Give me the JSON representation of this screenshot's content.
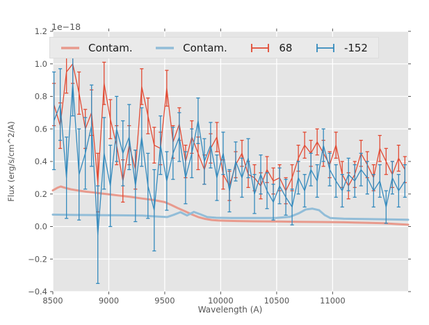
{
  "figure": {
    "offset_label": "1e−18",
    "xlabel": "Wavelength (A)",
    "ylabel": "Flux (erg/s/cm^2/A)"
  },
  "legend": {
    "entries": [
      {
        "label": "Contam.",
        "type": "line",
        "color": "#E89A8D"
      },
      {
        "label": "Contam.",
        "type": "line",
        "color": "#92BDD8"
      },
      {
        "label": "68",
        "type": "errorbar",
        "color": "#E24A33"
      },
      {
        "label": "-152",
        "type": "errorbar",
        "color": "#348ABD"
      }
    ]
  },
  "chart_data": {
    "type": "line",
    "title": "",
    "xlabel": "Wavelength (A)",
    "ylabel": "Flux (erg/s/cm^2/A)",
    "y_offset_factor": "1e-18",
    "xlim": [
      8500,
      11675
    ],
    "ylim": [
      -0.4,
      1.2
    ],
    "x_ticks": [
      8500,
      9000,
      9500,
      10000,
      10500,
      11000
    ],
    "y_ticks": [
      -0.4,
      -0.2,
      0.0,
      0.2,
      0.4,
      0.6,
      0.8,
      1.0,
      1.2
    ],
    "grid": true,
    "background": "#E5E5E5",
    "grid_color": "#FFFFFF",
    "tick_color": "#555555",
    "legend_position": "upper center",
    "series": [
      {
        "name": "Contam. (red)",
        "type": "line",
        "color": "#E89A8D",
        "linewidth": 3,
        "x": [
          8500,
          8540,
          8570,
          8610,
          8660,
          8720,
          8800,
          8900,
          9000,
          9100,
          9200,
          9300,
          9400,
          9500,
          9560,
          9620,
          9680,
          9740,
          9800,
          9860,
          9920,
          9980,
          10050,
          10150,
          10300,
          10500,
          10700,
          10900,
          11100,
          11300,
          11450,
          11550,
          11675
        ],
        "y": [
          0.222,
          0.238,
          0.246,
          0.238,
          0.229,
          0.222,
          0.214,
          0.206,
          0.198,
          0.19,
          0.182,
          0.172,
          0.163,
          0.15,
          0.132,
          0.112,
          0.094,
          0.075,
          0.058,
          0.047,
          0.04,
          0.037,
          0.035,
          0.034,
          0.032,
          0.031,
          0.029,
          0.028,
          0.026,
          0.023,
          0.02,
          0.016,
          0.011
        ]
      },
      {
        "name": "Contam. (blue)",
        "type": "line",
        "color": "#92BDD8",
        "linewidth": 3,
        "x": [
          8500,
          8700,
          8900,
          9100,
          9300,
          9420,
          9520,
          9580,
          9640,
          9700,
          9760,
          9820,
          9880,
          9960,
          10100,
          10300,
          10500,
          10620,
          10700,
          10760,
          10820,
          10880,
          10930,
          10980,
          11100,
          11300,
          11500,
          11675
        ],
        "y": [
          0.073,
          0.071,
          0.07,
          0.069,
          0.067,
          0.062,
          0.058,
          0.072,
          0.088,
          0.068,
          0.09,
          0.075,
          0.058,
          0.054,
          0.052,
          0.052,
          0.053,
          0.06,
          0.082,
          0.105,
          0.11,
          0.1,
          0.07,
          0.052,
          0.048,
          0.046,
          0.044,
          0.042
        ]
      },
      {
        "name": "68",
        "type": "errorbar",
        "color": "#E24A33",
        "linewidth": 1.3,
        "x": [
          8510,
          8566,
          8622,
          8678,
          8734,
          8790,
          8846,
          8902,
          8958,
          9014,
          9070,
          9126,
          9182,
          9238,
          9294,
          9350,
          9406,
          9462,
          9518,
          9574,
          9630,
          9686,
          9742,
          9798,
          9854,
          9910,
          9966,
          10022,
          10078,
          10134,
          10190,
          10246,
          10302,
          10358,
          10414,
          10470,
          10526,
          10582,
          10638,
          10694,
          10750,
          10806,
          10862,
          10918,
          10974,
          11030,
          11086,
          11142,
          11198,
          11254,
          11310,
          11366,
          11422,
          11478,
          11534,
          11590,
          11646
        ],
        "y": [
          0.75,
          0.62,
          0.95,
          1.0,
          0.82,
          0.6,
          0.7,
          0.27,
          0.88,
          0.66,
          0.5,
          0.28,
          0.5,
          0.35,
          0.86,
          0.68,
          0.5,
          0.48,
          0.85,
          0.52,
          0.63,
          0.4,
          0.55,
          0.45,
          0.35,
          0.48,
          0.55,
          0.32,
          0.25,
          0.38,
          0.45,
          0.32,
          0.3,
          0.25,
          0.35,
          0.28,
          0.3,
          0.22,
          0.3,
          0.42,
          0.5,
          0.45,
          0.52,
          0.45,
          0.38,
          0.5,
          0.32,
          0.25,
          0.32,
          0.45,
          0.38,
          0.3,
          0.48,
          0.4,
          0.32,
          0.42,
          0.35
        ],
        "yerr": [
          0.13,
          0.14,
          0.13,
          0.12,
          0.13,
          0.12,
          0.14,
          0.18,
          0.13,
          0.12,
          0.12,
          0.13,
          0.12,
          0.12,
          0.11,
          0.11,
          0.11,
          0.1,
          0.11,
          0.1,
          0.1,
          0.1,
          0.1,
          0.1,
          0.09,
          0.09,
          0.09,
          0.09,
          0.09,
          0.08,
          0.08,
          0.08,
          0.08,
          0.08,
          0.08,
          0.08,
          0.08,
          0.08,
          0.08,
          0.08,
          0.08,
          0.08,
          0.08,
          0.08,
          0.08,
          0.08,
          0.08,
          0.08,
          0.08,
          0.08,
          0.08,
          0.08,
          0.08,
          0.08,
          0.08,
          0.08,
          0.08
        ]
      },
      {
        "name": "-152",
        "type": "errorbar",
        "color": "#348ABD",
        "linewidth": 1.3,
        "x": [
          8510,
          8566,
          8622,
          8678,
          8734,
          8790,
          8846,
          8902,
          8958,
          9014,
          9070,
          9126,
          9182,
          9238,
          9294,
          9350,
          9406,
          9462,
          9518,
          9574,
          9630,
          9686,
          9742,
          9798,
          9854,
          9910,
          9966,
          10022,
          10078,
          10134,
          10190,
          10246,
          10302,
          10358,
          10414,
          10470,
          10526,
          10582,
          10638,
          10694,
          10750,
          10806,
          10862,
          10918,
          10974,
          11030,
          11086,
          11142,
          11198,
          11254,
          11310,
          11366,
          11422,
          11478,
          11534,
          11590,
          11646
        ],
        "y": [
          0.65,
          0.75,
          0.3,
          0.88,
          0.32,
          0.45,
          0.62,
          -0.05,
          0.45,
          0.25,
          0.6,
          0.45,
          0.55,
          0.25,
          0.55,
          0.25,
          0.1,
          0.5,
          0.28,
          0.45,
          0.55,
          0.3,
          0.45,
          0.65,
          0.4,
          0.5,
          0.3,
          0.45,
          0.22,
          0.4,
          0.3,
          0.42,
          0.2,
          0.32,
          0.22,
          0.15,
          0.25,
          0.18,
          0.12,
          0.3,
          0.22,
          0.35,
          0.28,
          0.5,
          0.35,
          0.28,
          0.22,
          0.32,
          0.28,
          0.35,
          0.3,
          0.22,
          0.28,
          0.12,
          0.3,
          0.22,
          0.28
        ],
        "yerr": [
          0.3,
          0.22,
          0.25,
          0.2,
          0.28,
          0.22,
          0.25,
          0.3,
          0.22,
          0.25,
          0.2,
          0.2,
          0.2,
          0.22,
          0.18,
          0.2,
          0.25,
          0.18,
          0.18,
          0.16,
          0.15,
          0.16,
          0.15,
          0.14,
          0.14,
          0.14,
          0.14,
          0.13,
          0.13,
          0.12,
          0.12,
          0.12,
          0.12,
          0.12,
          0.11,
          0.11,
          0.11,
          0.11,
          0.11,
          0.1,
          0.1,
          0.1,
          0.1,
          0.1,
          0.1,
          0.1,
          0.1,
          0.1,
          0.1,
          0.1,
          0.1,
          0.1,
          0.1,
          0.1,
          0.1,
          0.1,
          0.1
        ]
      }
    ]
  }
}
